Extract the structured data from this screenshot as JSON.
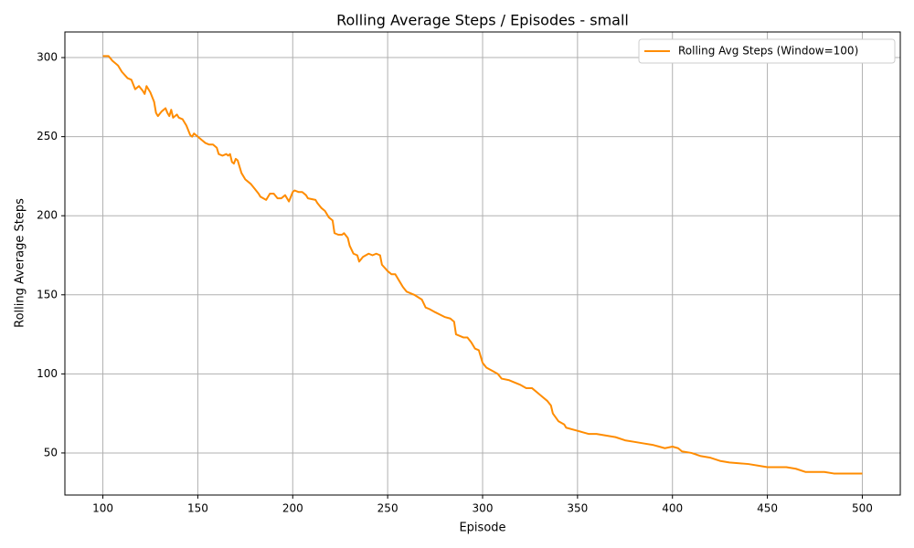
{
  "chart_data": {
    "type": "line",
    "title": "Rolling Average Steps / Episodes - small",
    "x_label": "Episode",
    "y_label": "Rolling Average Steps",
    "x": [
      100,
      103,
      105,
      108,
      110,
      113,
      115,
      117,
      119,
      121,
      122,
      123,
      125,
      127,
      128,
      129,
      131,
      133,
      134,
      135,
      136,
      137,
      139,
      140,
      142,
      144,
      146,
      147,
      148,
      150,
      152,
      154,
      156,
      158,
      160,
      161,
      163,
      165,
      166,
      167,
      168,
      169,
      170,
      171,
      172,
      173,
      175,
      178,
      180,
      182,
      183,
      186,
      188,
      190,
      192,
      194,
      196,
      198,
      200,
      201,
      203,
      205,
      207,
      208,
      212,
      213,
      215,
      217,
      219,
      221,
      222,
      224,
      226,
      227,
      229,
      230,
      232,
      234,
      235,
      237,
      240,
      242,
      244,
      246,
      247,
      250,
      252,
      254,
      256,
      258,
      260,
      264,
      268,
      270,
      272,
      275,
      280,
      283,
      285,
      286,
      288,
      290,
      292,
      294,
      296,
      298,
      300,
      302,
      305,
      308,
      310,
      314,
      316,
      320,
      323,
      326,
      329,
      331,
      334,
      336,
      337,
      340,
      343,
      344,
      350,
      353,
      356,
      360,
      365,
      370,
      375,
      380,
      385,
      390,
      393,
      396,
      400,
      403,
      405,
      410,
      415,
      420,
      425,
      430,
      440,
      450,
      455,
      460,
      465,
      470,
      480,
      485,
      490,
      495,
      500
    ],
    "series": [
      {
        "name": "Rolling Avg Steps (Window=100)",
        "color": "#ff8c00",
        "values": [
          301,
          301,
          298,
          295,
          291,
          287,
          286,
          280,
          282,
          279,
          277,
          282,
          278,
          272,
          265,
          263,
          266,
          268,
          265,
          263,
          267,
          262,
          264,
          262,
          261,
          257,
          251,
          250,
          252,
          250,
          248,
          246,
          245,
          245,
          243,
          239,
          238,
          239,
          238,
          239,
          234,
          233,
          236,
          235,
          231,
          227,
          223,
          220,
          217,
          214,
          212,
          210,
          214,
          214,
          211,
          211,
          213,
          209,
          215,
          216,
          215,
          215,
          213,
          211,
          210,
          208,
          205,
          203,
          199,
          197,
          189,
          188,
          188,
          189,
          186,
          181,
          176,
          175,
          171,
          174,
          176,
          175,
          176,
          175,
          169,
          165,
          163,
          163,
          159,
          155,
          152,
          150,
          147,
          142,
          141,
          139,
          136,
          135,
          133,
          125,
          124,
          123,
          123,
          120,
          116,
          115,
          107,
          104,
          102,
          100,
          97,
          96,
          95,
          93,
          91,
          91,
          88,
          86,
          83,
          80,
          75,
          70,
          68,
          66,
          64,
          63,
          62,
          62,
          61,
          60,
          58,
          57,
          56,
          55,
          54,
          53,
          54,
          53,
          51,
          50,
          48,
          47,
          45,
          44,
          43,
          41,
          41,
          41,
          40,
          38,
          38,
          37,
          37,
          37,
          37
        ]
      }
    ],
    "xlim": [
      80,
      520
    ],
    "ylim": [
      23.4,
      316.2
    ],
    "xticks": [
      100,
      150,
      200,
      250,
      300,
      350,
      400,
      450,
      500
    ],
    "yticks": [
      50,
      100,
      150,
      200,
      250,
      300
    ],
    "grid": true,
    "legend": "upper right"
  }
}
